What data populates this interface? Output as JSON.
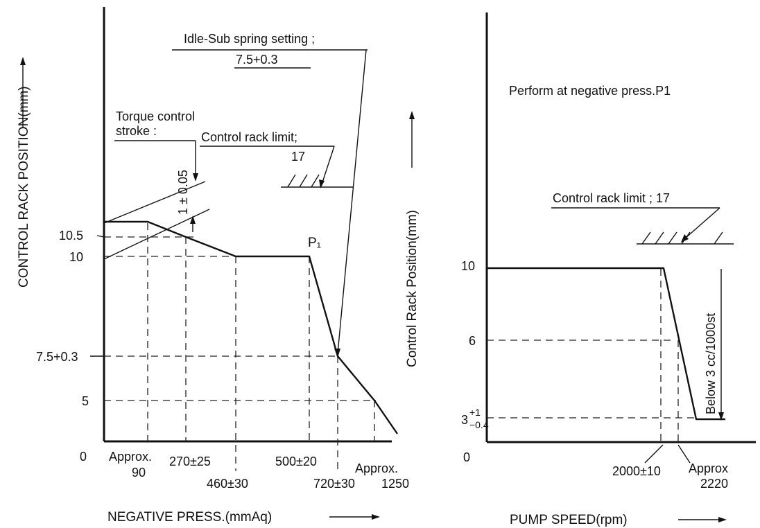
{
  "chart_data": [
    {
      "type": "line",
      "xlabel": "NEGATIVE PRESS.(mmAq)",
      "ylabel": "CONTROL RACK POSITION(mm)",
      "origin_label": "0",
      "x_tick_labels": [
        {
          "id": "x90",
          "text": "Approx.",
          "text2": "90"
        },
        {
          "id": "x270",
          "text": "270±25"
        },
        {
          "id": "x460",
          "text": "460±30"
        },
        {
          "id": "x500",
          "text": "500±20"
        },
        {
          "id": "x720",
          "text": "720±30"
        },
        {
          "id": "x1250",
          "text": "Approx.",
          "text2": "1250"
        }
      ],
      "y_tick_labels": [
        {
          "id": "y105",
          "text": "10.5"
        },
        {
          "id": "y10",
          "text": "10"
        },
        {
          "id": "y75",
          "text": "7.5+0.3"
        },
        {
          "id": "y5",
          "text": "5"
        }
      ],
      "series": [
        {
          "points": [
            {
              "x": 0,
              "y": 11.0
            },
            {
              "x": 90,
              "y": 11.0
            },
            {
              "x": 270,
              "y": 10.5
            },
            {
              "x": 460,
              "y": 10.0
            },
            {
              "x": 500,
              "y": 10.0
            },
            {
              "x": 720,
              "y": 7.5
            },
            {
              "x": 1250,
              "y": 5.0
            },
            {
              "x": 1300,
              "y": 4.4
            }
          ]
        }
      ],
      "point_labels": [
        {
          "text": "P₁"
        }
      ],
      "annotations": {
        "idle_sub_title": "Idle-Sub spring setting ;",
        "idle_sub_value": "7.5+0.3",
        "torque_title": "Torque control",
        "torque_title2": "stroke :",
        "torque_value": "1 ± 0.05",
        "rack_limit_title": "Control rack limit;",
        "rack_limit_value": "17"
      }
    },
    {
      "type": "line",
      "xlabel": "PUMP SPEED(rpm)",
      "ylabel": "Control Rack Position(mm)",
      "origin_label": "0",
      "x_tick_labels": [
        {
          "id": "x2000",
          "text": "2000±10"
        },
        {
          "id": "x2220",
          "text": "Approx",
          "text2": "2220"
        }
      ],
      "y_tick_labels": [
        {
          "id": "y10",
          "text": "10"
        },
        {
          "id": "y6",
          "text": "6"
        },
        {
          "id": "y3",
          "text": "3",
          "sup": "+1",
          "sub": "−0.4"
        }
      ],
      "series": [
        {
          "points": [
            {
              "x": 0,
              "y": 10
            },
            {
              "x": 2000,
              "y": 10
            },
            {
              "x": 2180,
              "y": 3
            },
            {
              "x": 2300,
              "y": 3
            }
          ]
        }
      ],
      "annotations": {
        "note": "Perform at negative press.P1",
        "rack_limit_title": "Control rack limit ; 17",
        "below_note": "Below  3 cc/1000st"
      }
    }
  ]
}
